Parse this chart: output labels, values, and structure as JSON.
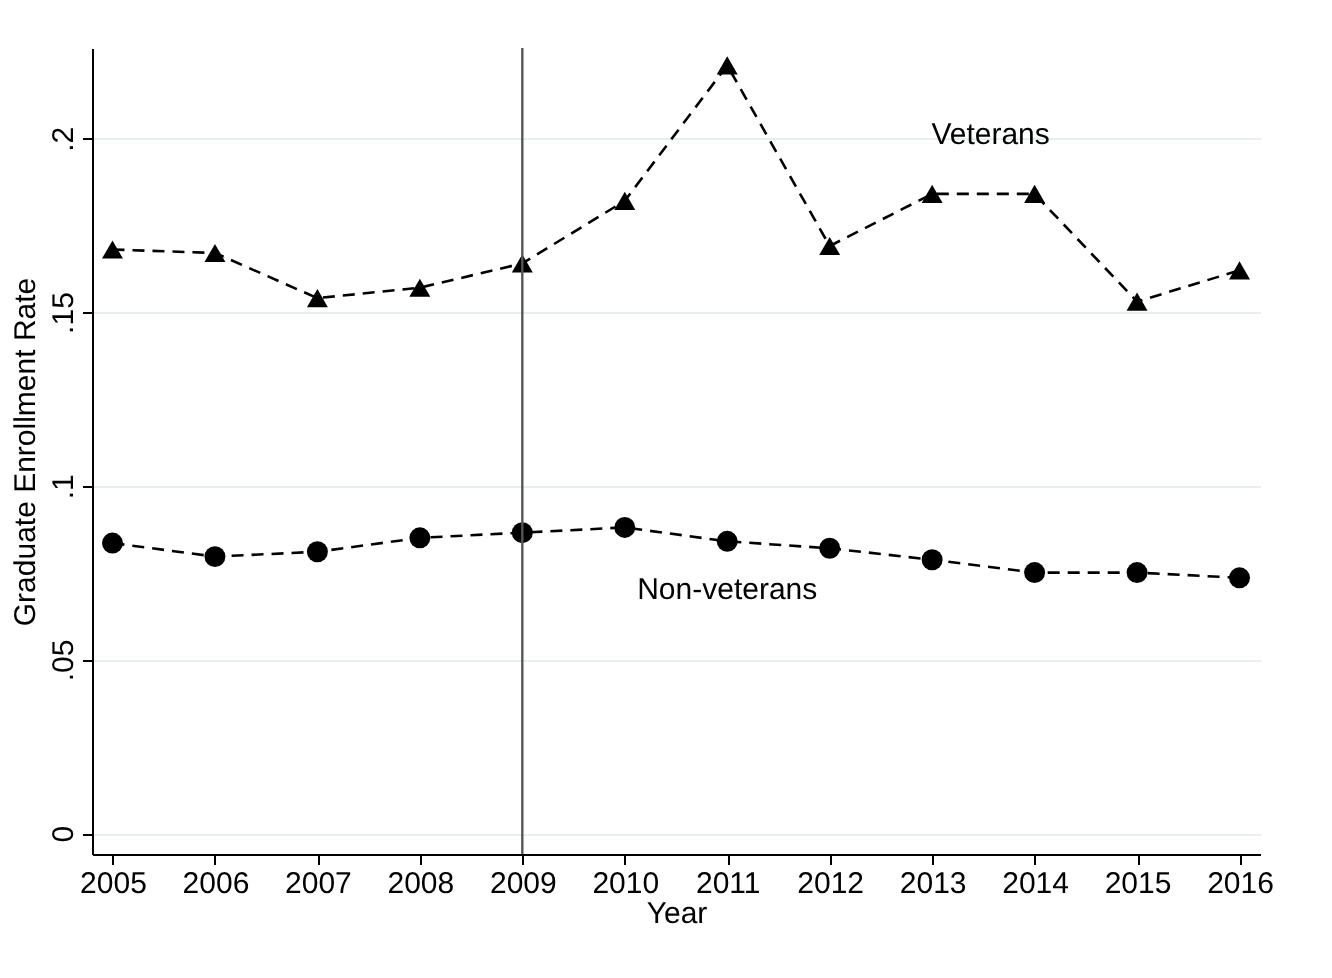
{
  "chart_data": {
    "type": "line",
    "xlabel": "Year",
    "ylabel": "Graduate Enrollment Rate",
    "x": [
      2005,
      2006,
      2007,
      2008,
      2009,
      2010,
      2011,
      2012,
      2013,
      2014,
      2015,
      2016
    ],
    "series": [
      {
        "name": "Veterans",
        "color": "#000000",
        "marker": "triangle",
        "values": [
          0.168,
          0.167,
          0.154,
          0.157,
          0.164,
          0.182,
          0.221,
          0.169,
          0.184,
          0.184,
          0.153,
          0.162
        ]
      },
      {
        "name": "Non-veterans",
        "color": "#000000",
        "marker": "circle",
        "values": [
          0.0835,
          0.0796,
          0.081,
          0.085,
          0.0865,
          0.088,
          0.084,
          0.082,
          0.0787,
          0.075,
          0.075,
          0.0735
        ]
      }
    ],
    "ref_lines": [
      {
        "axis": "x",
        "value": 2009,
        "color": "#555555"
      }
    ],
    "xlim": [
      2004.8,
      2016.2
    ],
    "xticks": [
      2005,
      2006,
      2007,
      2008,
      2009,
      2010,
      2011,
      2012,
      2013,
      2014,
      2015,
      2016
    ],
    "ylim": [
      -0.006,
      0.226
    ],
    "yticks": [
      {
        "value": 0,
        "label": "0"
      },
      {
        "value": 0.05,
        "label": ".05"
      },
      {
        "value": 0.1,
        "label": ".1"
      },
      {
        "value": 0.15,
        "label": ".15"
      },
      {
        "value": 0.2,
        "label": ".2"
      }
    ],
    "grid": "y",
    "legend": false,
    "line_style": "dashed"
  }
}
